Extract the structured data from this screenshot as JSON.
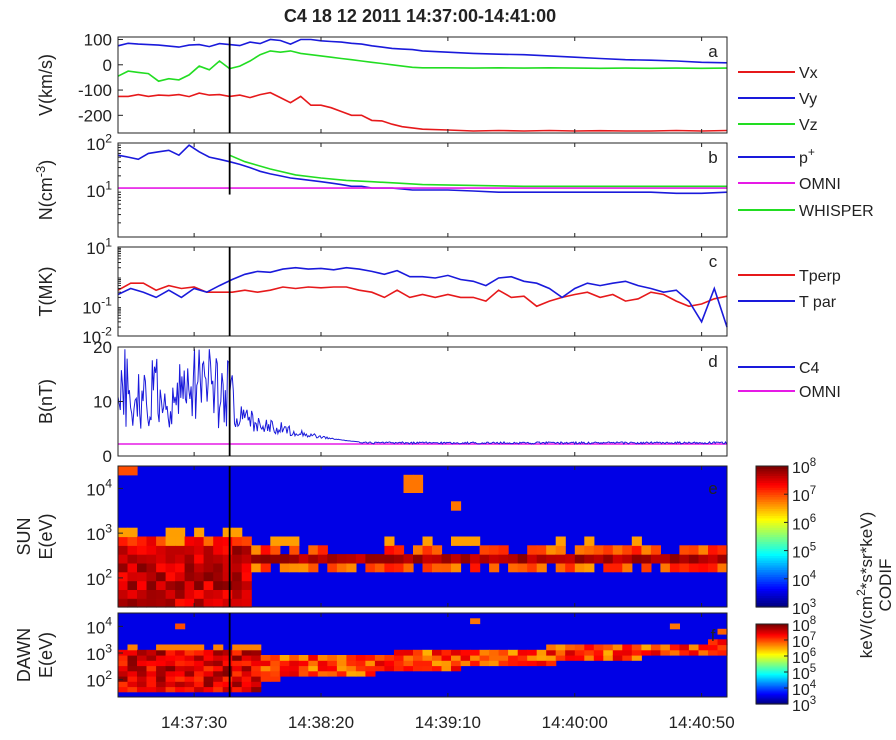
{
  "title": "C4 18 12 2011 14:37:00-14:41:00",
  "colorbar": {
    "label_line1": "keV/(cm",
    "label_sup": "2",
    "label_line2": "*s*sr*keV)",
    "label_line3": "CODIF",
    "ticks": [
      {
        "base": "10",
        "exp": "3"
      },
      {
        "base": "10",
        "exp": "4"
      },
      {
        "base": "10",
        "exp": "5"
      },
      {
        "base": "10",
        "exp": "6"
      },
      {
        "base": "10",
        "exp": "7"
      },
      {
        "base": "10",
        "exp": "8"
      }
    ]
  },
  "chart_data": [
    {
      "type": "line",
      "panel": "a",
      "ylabel": "V(km/s)",
      "ylim": [
        -270,
        110
      ],
      "yticks": [
        "100",
        "0",
        "-100",
        "-200"
      ],
      "xlim_seconds_after_14_37_00": [
        0,
        240
      ],
      "legend": [
        "Vx",
        "Vy",
        "Vz"
      ],
      "series": [
        {
          "name": "Vx",
          "color": "#e6191b",
          "x": [
            0,
            4,
            8,
            12,
            16,
            20,
            24,
            28,
            32,
            36,
            40,
            44,
            48,
            52,
            56,
            60,
            64,
            68,
            72,
            76,
            80,
            84,
            88,
            92,
            96,
            100,
            104,
            108,
            112,
            116,
            120,
            130,
            140,
            150,
            160,
            170,
            180,
            190,
            200,
            210,
            220,
            230,
            240
          ],
          "y": [
            -125,
            -125,
            -118,
            -125,
            -120,
            -122,
            -118,
            -126,
            -112,
            -120,
            -118,
            -125,
            -120,
            -130,
            -118,
            -110,
            -130,
            -150,
            -125,
            -160,
            -160,
            -170,
            -185,
            -200,
            -200,
            -220,
            -222,
            -235,
            -245,
            -250,
            -255,
            -258,
            -262,
            -260,
            -262,
            -260,
            -262,
            -261,
            -262,
            -262,
            -260,
            -262,
            -260
          ]
        },
        {
          "name": "Vy",
          "color": "#1a1adb",
          "x": [
            0,
            4,
            8,
            12,
            16,
            20,
            24,
            28,
            32,
            36,
            40,
            44,
            48,
            52,
            56,
            60,
            64,
            68,
            72,
            76,
            80,
            84,
            88,
            92,
            96,
            100,
            104,
            108,
            112,
            116,
            120,
            130,
            140,
            150,
            160,
            170,
            180,
            190,
            200,
            210,
            220,
            230,
            240
          ],
          "y": [
            75,
            85,
            82,
            80,
            78,
            74,
            70,
            78,
            80,
            72,
            84,
            80,
            76,
            90,
            84,
            100,
            96,
            82,
            100,
            100,
            95,
            92,
            90,
            85,
            82,
            75,
            70,
            65,
            62,
            60,
            55,
            50,
            45,
            42,
            40,
            35,
            30,
            25,
            20,
            18,
            15,
            10,
            8
          ]
        },
        {
          "name": "Vz",
          "color": "#22dd22",
          "x": [
            0,
            4,
            8,
            12,
            16,
            20,
            24,
            28,
            32,
            36,
            40,
            44,
            48,
            52,
            56,
            60,
            64,
            68,
            72,
            76,
            80,
            84,
            88,
            92,
            96,
            100,
            104,
            108,
            112,
            116,
            120,
            130,
            140,
            150,
            160,
            170,
            180,
            190,
            200,
            210,
            220,
            230,
            240
          ],
          "y": [
            -45,
            -25,
            -30,
            -35,
            -65,
            -55,
            -60,
            -40,
            -5,
            -20,
            15,
            -15,
            -5,
            15,
            40,
            55,
            50,
            55,
            45,
            40,
            35,
            30,
            25,
            20,
            15,
            10,
            5,
            0,
            -5,
            -10,
            -12,
            -12,
            -13,
            -12,
            -13,
            -12,
            -13,
            -14,
            -13,
            -14,
            -13,
            -14,
            -13
          ]
        }
      ]
    },
    {
      "type": "line",
      "panel": "b",
      "ylabel": "N(cm-3)",
      "yscale": "log",
      "ylim": [
        1,
        100
      ],
      "yticks": [
        {
          "base": "10",
          "exp": "2"
        },
        {
          "base": "10",
          "exp": "1"
        }
      ],
      "legend": [
        "p+",
        "OMNI",
        "WHISPER"
      ],
      "series": [
        {
          "name": "p+",
          "color": "#1a1adb",
          "x": [
            0,
            4,
            8,
            12,
            16,
            20,
            24,
            28,
            32,
            36,
            40,
            44,
            48,
            52,
            56,
            60,
            64,
            68,
            72,
            76,
            80,
            84,
            88,
            92,
            96,
            100,
            104,
            108,
            112,
            116,
            120,
            130,
            140,
            150,
            160,
            170,
            180,
            190,
            200,
            210,
            220,
            230,
            240
          ],
          "y": [
            55,
            50,
            45,
            60,
            65,
            70,
            55,
            90,
            65,
            50,
            45,
            40,
            35,
            30,
            25,
            22,
            20,
            18,
            17,
            16,
            15,
            14,
            13,
            12,
            12,
            11,
            11,
            11,
            10.5,
            10,
            10,
            10,
            9.5,
            9,
            9,
            9,
            9,
            9,
            9,
            9,
            8.5,
            8.5,
            9
          ]
        },
        {
          "name": "OMNI",
          "color": "#e61ae6",
          "x": [
            0,
            240
          ],
          "y": [
            11,
            11
          ]
        },
        {
          "name": "WHISPER",
          "color": "#22dd22",
          "x": [
            44,
            50,
            60,
            70,
            80,
            90,
            100,
            110,
            120,
            140,
            160,
            180,
            200,
            220,
            240
          ],
          "y": [
            55,
            40,
            28,
            21,
            18,
            16,
            15,
            14,
            13,
            12.5,
            12,
            12,
            12,
            12,
            12
          ]
        }
      ]
    },
    {
      "type": "line",
      "panel": "c",
      "ylabel": "T(MK)",
      "yscale": "log",
      "ylim": [
        0.01,
        10
      ],
      "legend": [
        "Tperp",
        "T par"
      ],
      "series": [
        {
          "name": "Tperp",
          "color": "#e6191b",
          "x": [
            0,
            5,
            10,
            15,
            20,
            25,
            30,
            35,
            40,
            45,
            50,
            55,
            60,
            65,
            70,
            75,
            80,
            85,
            90,
            95,
            100,
            105,
            110,
            115,
            120,
            125,
            130,
            135,
            140,
            145,
            150,
            155,
            160,
            165,
            170,
            175,
            180,
            185,
            190,
            195,
            200,
            205,
            210,
            215,
            220,
            225,
            230,
            235,
            240
          ],
          "y": [
            0.35,
            0.6,
            0.6,
            0.35,
            0.5,
            0.4,
            0.45,
            0.3,
            0.3,
            0.3,
            0.35,
            0.3,
            0.35,
            0.45,
            0.4,
            0.45,
            0.42,
            0.45,
            0.45,
            0.35,
            0.3,
            0.2,
            0.35,
            0.2,
            0.25,
            0.2,
            0.25,
            0.2,
            0.2,
            0.15,
            0.35,
            0.2,
            0.22,
            0.1,
            0.15,
            0.2,
            0.25,
            0.3,
            0.2,
            0.25,
            0.15,
            0.18,
            0.3,
            0.25,
            0.15,
            0.1,
            0.12,
            0.18,
            0.22
          ]
        },
        {
          "name": "T par",
          "color": "#1a1adb",
          "x": [
            0,
            5,
            10,
            15,
            20,
            25,
            30,
            35,
            40,
            45,
            50,
            55,
            60,
            65,
            70,
            75,
            80,
            85,
            90,
            95,
            100,
            105,
            110,
            115,
            120,
            125,
            130,
            135,
            140,
            145,
            150,
            155,
            160,
            165,
            170,
            175,
            180,
            185,
            190,
            195,
            200,
            205,
            210,
            215,
            220,
            225,
            230,
            235,
            240
          ],
          "y": [
            0.25,
            0.4,
            0.3,
            0.2,
            0.35,
            0.2,
            0.4,
            0.3,
            0.5,
            0.8,
            1.2,
            1.5,
            1.4,
            1.8,
            2.0,
            1.8,
            1.9,
            1.7,
            2.0,
            1.8,
            1.5,
            1.2,
            1.6,
            1.0,
            1.0,
            0.9,
            1.1,
            0.8,
            0.7,
            0.5,
            0.9,
            1.0,
            0.7,
            0.6,
            0.4,
            0.2,
            0.4,
            0.6,
            0.5,
            0.6,
            0.7,
            0.5,
            0.4,
            0.3,
            0.35,
            0.15,
            0.03,
            0.4,
            0.02
          ]
        }
      ]
    },
    {
      "type": "line",
      "panel": "d",
      "ylabel": "B(nT)",
      "ylim": [
        0,
        20
      ],
      "yticks": [
        "20",
        "10",
        "0"
      ],
      "legend": [
        "C4",
        "OMNI"
      ],
      "series": [
        {
          "name": "C4",
          "color": "#1a1adb",
          "note_values": "dense: 6-19 nT up to 14:37:45, decaying to ~2.5 nT by 14:38:35, flat after"
        },
        {
          "name": "OMNI",
          "color": "#e61ae6",
          "x": [
            0,
            240
          ],
          "y": [
            2.2,
            2.2
          ]
        }
      ]
    },
    {
      "type": "heatmap",
      "panel": "e",
      "ylabel": "E(eV)",
      "ylabel2": "SUN",
      "yscale": "log",
      "yticks": [
        {
          "base": "10",
          "exp": "2"
        },
        {
          "base": "10",
          "exp": "3"
        },
        {
          "base": "10",
          "exp": "4"
        }
      ]
    },
    {
      "type": "heatmap",
      "panel": "f",
      "ylabel": "E(eV)",
      "ylabel2": "DAWN",
      "yscale": "log",
      "yticks": [
        {
          "base": "10",
          "exp": "2"
        },
        {
          "base": "10",
          "exp": "3"
        },
        {
          "base": "10",
          "exp": "4"
        }
      ]
    }
  ],
  "xticks": [
    "14:37:30",
    "14:38:20",
    "14:39:10",
    "14:40:00",
    "14:40:50"
  ],
  "event_marker_seconds": 44
}
